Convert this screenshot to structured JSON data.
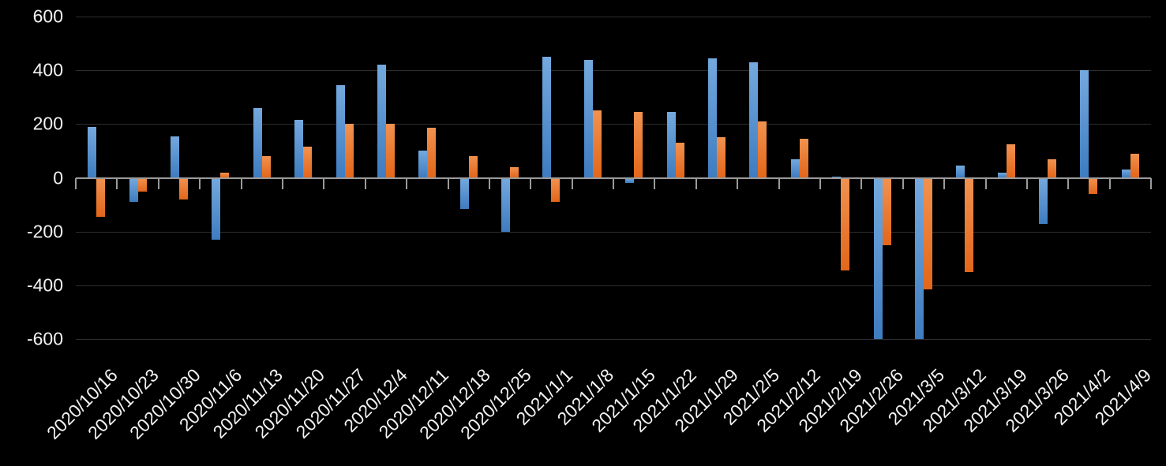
{
  "chart_data": {
    "type": "bar",
    "title": "",
    "xlabel": "",
    "ylabel": "",
    "categories": [
      "2020/10/16",
      "2020/10/23",
      "2020/10/30",
      "2020/11/6",
      "2020/11/13",
      "2020/11/20",
      "2020/11/27",
      "2020/12/4",
      "2020/12/11",
      "2020/12/18",
      "2020/12/25",
      "2021/1/1",
      "2021/1/8",
      "2021/1/15",
      "2021/1/22",
      "2021/1/29",
      "2021/2/5",
      "2021/2/12",
      "2021/2/19",
      "2021/2/26",
      "2021/3/5",
      "2021/3/12",
      "2021/3/19",
      "2021/3/26",
      "2021/4/2",
      "2021/4/9"
    ],
    "series": [
      {
        "name": "series-1-blue",
        "color": "#5B9BD5",
        "gradient_top": "#74a9de",
        "gradient_bottom": "#3e7cc0",
        "values": [
          190,
          -90,
          155,
          -230,
          260,
          215,
          345,
          420,
          100,
          -115,
          -200,
          450,
          440,
          -20,
          245,
          445,
          430,
          70,
          5,
          -600,
          -600,
          45,
          20,
          -170,
          400,
          30
        ]
      },
      {
        "name": "series-2-orange",
        "color": "#ED7D31",
        "gradient_top": "#f19250",
        "gradient_bottom": "#e2661a",
        "values": [
          -145,
          -50,
          -80,
          20,
          80,
          115,
          200,
          200,
          185,
          80,
          40,
          -90,
          250,
          245,
          130,
          150,
          210,
          145,
          -345,
          -250,
          -415,
          -350,
          125,
          70,
          -60,
          90
        ]
      }
    ],
    "ylim": [
      -600,
      600
    ],
    "yticks": [
      600,
      400,
      200,
      0,
      -200,
      -400,
      -600
    ],
    "grid": "horizontal-on",
    "legend": "none",
    "background_color": "#000000",
    "axis_color": "#9b9b9b",
    "gridline_color": "#2e2e2e",
    "label_color": "#f2f2f2",
    "x_label_rotation_deg": -45
  }
}
